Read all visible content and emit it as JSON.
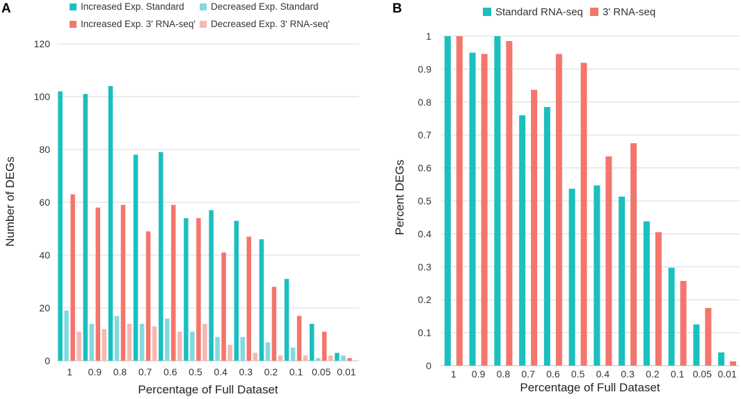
{
  "chart_data": [
    {
      "panel": "A",
      "type": "bar",
      "title": "",
      "xlabel": "Percentage of Full Dataset",
      "ylabel": "Number of DEGs",
      "ylim": [
        0,
        120
      ],
      "yticks": [
        0,
        20,
        40,
        60,
        80,
        100,
        120
      ],
      "grid": true,
      "legend_position": "top",
      "categories": [
        "1",
        "0.9",
        "0.8",
        "0.7",
        "0.6",
        "0.5",
        "0.4",
        "0.3",
        "0.2",
        "0.1",
        "0.05",
        "0.01"
      ],
      "series": [
        {
          "name": "Increased Exp. Standard",
          "color": "#1bbfbf",
          "values": [
            102,
            101,
            104,
            78,
            79,
            54,
            57,
            53,
            46,
            31,
            14,
            3
          ]
        },
        {
          "name": "Decreased Exp. Standard",
          "color": "#84d9df",
          "values": [
            19,
            14,
            17,
            14,
            16,
            11,
            9,
            9,
            7,
            5,
            1,
            2
          ]
        },
        {
          "name": "Increased Exp. 3' RNA-seq'",
          "color": "#f4756c",
          "values": [
            63,
            58,
            59,
            49,
            59,
            54,
            41,
            47,
            28,
            17,
            11,
            1
          ]
        },
        {
          "name": "Decreased Exp. 3' RNA-seq'",
          "color": "#f8b7b1",
          "values": [
            11,
            12,
            14,
            13,
            11,
            14,
            6,
            3,
            2,
            2,
            2,
            0
          ]
        }
      ]
    },
    {
      "panel": "B",
      "type": "bar",
      "title": "",
      "xlabel": "Percentage of Full Dataset",
      "ylabel": "Percent DEGs",
      "ylim": [
        0,
        1
      ],
      "yticks": [
        "0",
        "0.1",
        "0.2",
        "0.3",
        "0.4",
        "0.5",
        "0.6",
        "0.7",
        "0.8",
        "0.9",
        "1"
      ],
      "grid": true,
      "legend_position": "top",
      "categories": [
        "1",
        "0.9",
        "0.8",
        "0.7",
        "0.6",
        "0.5",
        "0.4",
        "0.3",
        "0.2",
        "0.1",
        "0.05",
        "0.01"
      ],
      "series": [
        {
          "name": "Standard RNA-seq",
          "color": "#1bbfbf",
          "values": [
            1.0,
            0.95,
            1.0,
            0.76,
            0.785,
            0.537,
            0.547,
            0.513,
            0.438,
            0.297,
            0.125,
            0.04
          ]
        },
        {
          "name": "3' RNA-seq",
          "color": "#f4756c",
          "values": [
            1.0,
            0.946,
            0.985,
            0.837,
            0.946,
            0.919,
            0.635,
            0.675,
            0.405,
            0.257,
            0.175,
            0.013
          ]
        }
      ]
    }
  ]
}
